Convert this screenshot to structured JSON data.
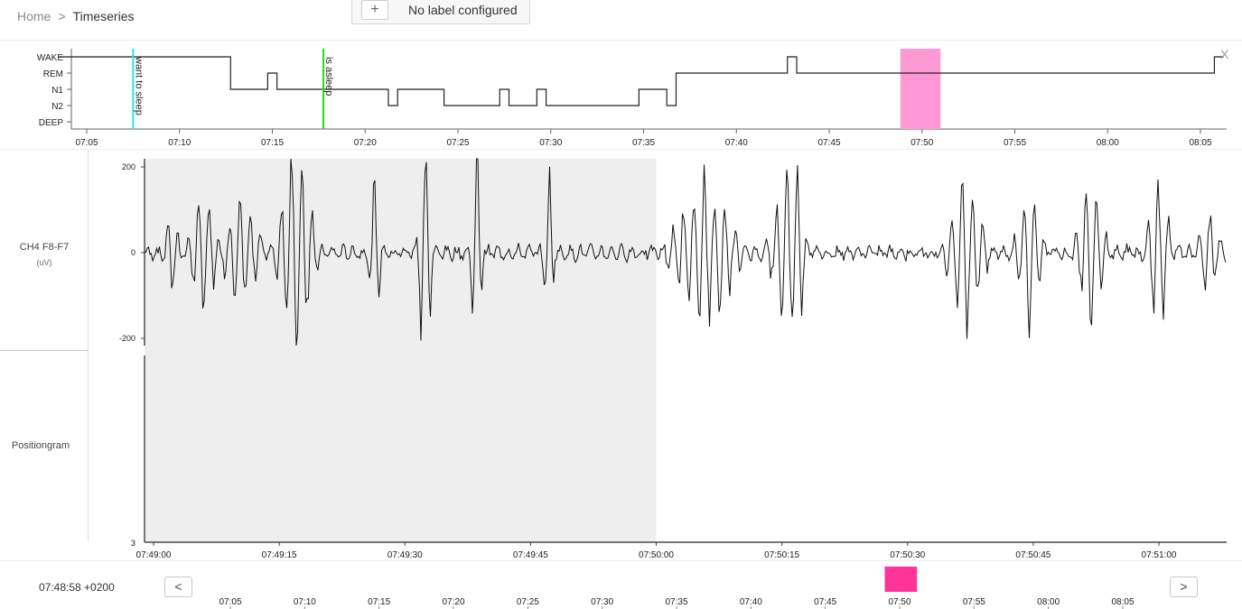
{
  "breadcrumb": {
    "home": "Home",
    "separator": ">",
    "current": "Timeseries"
  },
  "label_config": {
    "add_symbol": "+",
    "text": "No label configured"
  },
  "hypnogram": {
    "stages": [
      "WAKE",
      "REM",
      "N1",
      "N2",
      "DEEP"
    ],
    "time_ticks": [
      "07:05",
      "07:10",
      "07:15",
      "07:20",
      "07:25",
      "07:30",
      "07:35",
      "07:40",
      "07:45",
      "07:50",
      "07:55",
      "08:00",
      "08:05"
    ],
    "markers": [
      {
        "label": "want to sleep",
        "color": "#22e6ee"
      },
      {
        "label": "is asleep",
        "color": "#22dd22"
      }
    ],
    "highlight_color": "#ff99d6",
    "close_symbol": "X",
    "start_time": "07:03:30",
    "steps": [
      [
        "07:03:30",
        "WAKE"
      ],
      [
        "07:12:45",
        "N1"
      ],
      [
        "07:14:45",
        "REM"
      ],
      [
        "07:15:15",
        "N1"
      ],
      [
        "07:21:15",
        "N2"
      ],
      [
        "07:21:45",
        "N1"
      ],
      [
        "07:24:15",
        "N2"
      ],
      [
        "07:27:15",
        "N1"
      ],
      [
        "07:27:45",
        "N2"
      ],
      [
        "07:29:15",
        "N1"
      ],
      [
        "07:29:45",
        "N2"
      ],
      [
        "07:34:45",
        "N1"
      ],
      [
        "07:36:15",
        "N2"
      ],
      [
        "07:36:45",
        "REM"
      ],
      [
        "07:42:45",
        "WAKE"
      ],
      [
        "07:43:15",
        "REM"
      ],
      [
        "08:05:45",
        "WAKE"
      ],
      [
        "08:06:15",
        "WAKE"
      ]
    ],
    "marker_times": [
      "07:07:30",
      "07:17:45"
    ],
    "highlight_range": [
      "07:48:50",
      "07:51:00"
    ]
  },
  "channels": [
    {
      "name": "CH4 F8-F7",
      "unit": "(uV)",
      "y_ticks": [
        "200",
        "0",
        "-200"
      ]
    },
    {
      "name": "Positiongram",
      "y_ticks": [
        "3"
      ]
    }
  ],
  "signal": {
    "x_ticks": [
      "07:49:00",
      "07:49:15",
      "07:49:30",
      "07:49:45",
      "07:50:00",
      "07:50:15",
      "07:50:30",
      "07:50:45",
      "07:51:00"
    ],
    "shaded_until": "07:50:00",
    "window": [
      "07:49:00",
      "07:51:08"
    ]
  },
  "footer": {
    "timestamp": "07:48:58 +0200",
    "prev_symbol": "<",
    "next_symbol": ">",
    "minimap_ticks": [
      "07:05",
      "07:10",
      "07:15",
      "07:20",
      "07:25",
      "07:30",
      "07:35",
      "07:40",
      "07:45",
      "07:50",
      "07:55",
      "08:00",
      "08:05"
    ],
    "minimap_highlight_color": "#ff3399",
    "minimap_highlight_range": [
      "07:49:00",
      "07:51:10"
    ]
  }
}
